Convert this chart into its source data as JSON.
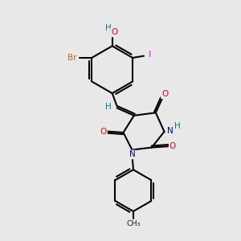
{
  "bg_color": "#e8e8e8",
  "bond_color": "#000000",
  "atom_colors": {
    "N": "#0000cc",
    "O": "#ff0000",
    "H": "#008080",
    "Br": "#cc6600",
    "I": "#ee00ee",
    "C": "#000000"
  },
  "figsize": [
    3.0,
    3.0
  ],
  "dpi": 100
}
